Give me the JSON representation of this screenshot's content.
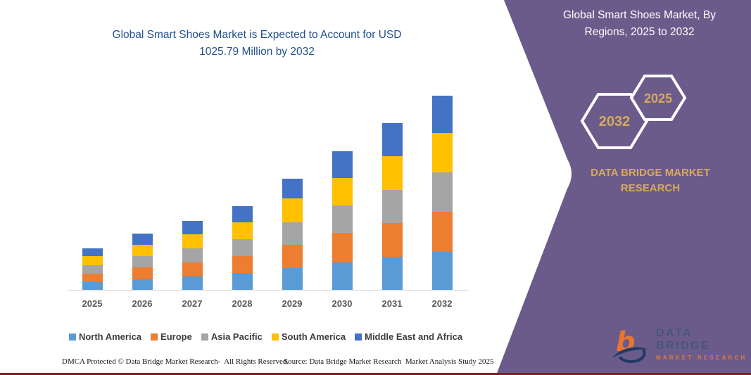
{
  "chart_data": {
    "type": "bar",
    "stacked": true,
    "title": "Global Smart Shoes Market is Expected to Account for USD 1025.79 Million by 2032",
    "title_lines": {
      "0": "Global Smart Shoes Market is Expected to Account for USD",
      "1": "1025.79 Million by 2032"
    },
    "unit": "USD Million",
    "categories": [
      "2025",
      "2026",
      "2027",
      "2028",
      "2029",
      "2030",
      "2031",
      "2032"
    ],
    "series": [
      {
        "name": "North America",
        "color": "#5B9BD5",
        "values": [
          42,
          57,
          72,
          90,
          114,
          144,
          176,
          200.5
        ]
      },
      {
        "name": "Europe",
        "color": "#ED7D31",
        "values": [
          45,
          64,
          73,
          89,
          124,
          156,
          177,
          210.7
        ]
      },
      {
        "name": "Asia Pacific",
        "color": "#A5A5A5",
        "values": [
          42,
          59,
          75,
          89,
          118,
          146,
          174,
          208.1
        ]
      },
      {
        "name": "South America",
        "color": "#FFC000",
        "values": [
          48,
          59,
          73,
          89,
          127,
          144,
          180,
          208.1
        ]
      },
      {
        "name": "Middle East and Africa",
        "color": "#4472C4",
        "values": [
          41,
          59,
          71,
          86,
          103,
          142,
          174,
          198.4
        ]
      }
    ],
    "totals": [
      218,
      298,
      364,
      443,
      586,
      732,
      881,
      1025.79
    ],
    "ylim": [
      0,
      1060
    ],
    "grid": false,
    "legend_position": "bottom",
    "axis_color": "#d9d9d9"
  },
  "footer": {
    "dmca": "DMCA Protected © Data Bridge Market Research-  All Rights Reserved.",
    "source": "Source: Data Bridge Market Research  Market Analysis Study 2025"
  },
  "right_panel": {
    "heading_lines": {
      "0": "Global Smart Shoes Market, By",
      "1": "Regions, 2025 to 2032"
    },
    "hex_large_year": "2032",
    "hex_small_year": "2025",
    "brand_lines": {
      "0": "DATA BRIDGE MARKET",
      "1": "RESEARCH"
    },
    "logo_title": "DATA BRIDGE",
    "logo_subtitle": "MARKET RESEARCH"
  },
  "colors": {
    "panel_bg": "#6a5b8a",
    "gold": "#d8a95d",
    "title_blue": "#24508F",
    "bottom_line": "#7c2125",
    "logo_orange": "#e8762d",
    "logo_navy": "#1f3864"
  }
}
